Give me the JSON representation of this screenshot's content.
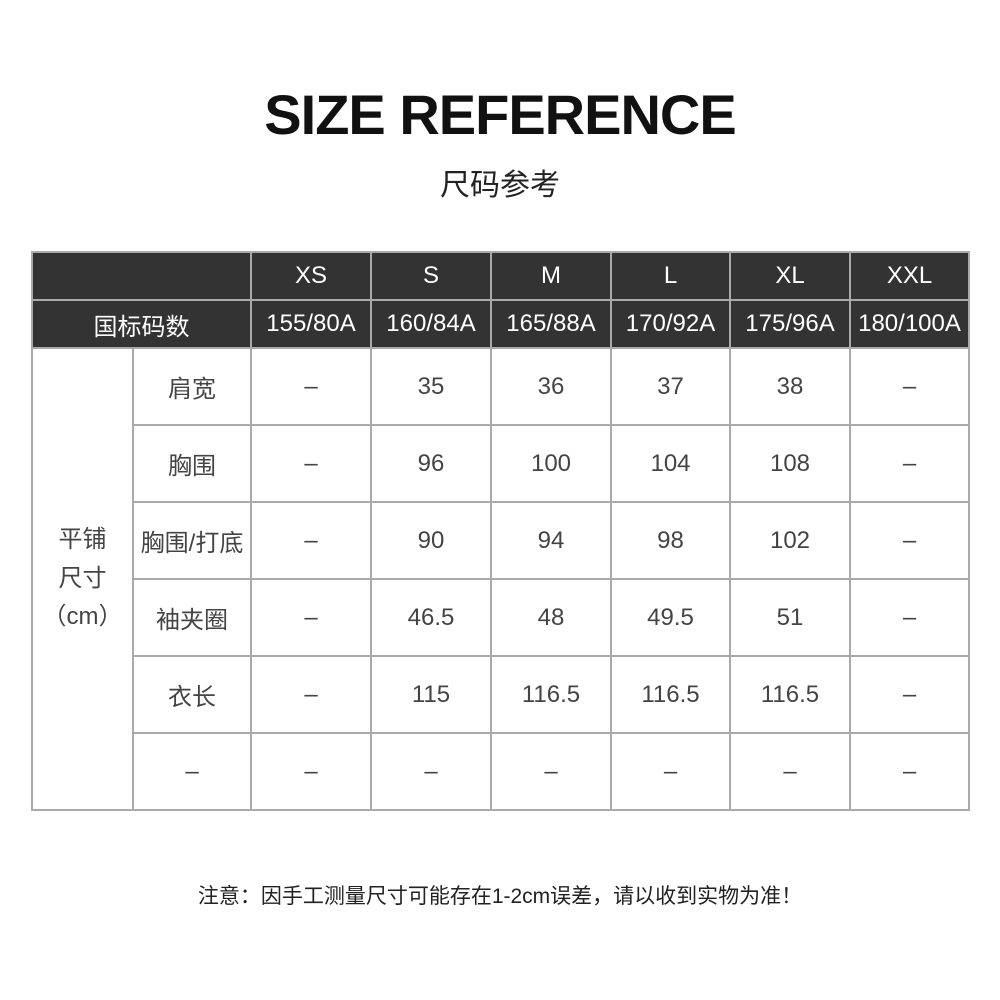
{
  "title": "SIZE REFERENCE",
  "subtitle": "尺码参考",
  "table": {
    "sizes": [
      "XS",
      "S",
      "M",
      "L",
      "XL",
      "XXL"
    ],
    "standard_label": "国标码数",
    "standard": [
      "155/80A",
      "160/84A",
      "165/88A",
      "170/92A",
      "175/96A",
      "180/100A"
    ],
    "group_label": [
      "平铺",
      "尺寸",
      "（cm）"
    ],
    "rows": [
      {
        "label": "肩宽",
        "values": [
          "–",
          "35",
          "36",
          "37",
          "38",
          "–"
        ]
      },
      {
        "label": "胸围",
        "values": [
          "–",
          "96",
          "100",
          "104",
          "108",
          "–"
        ]
      },
      {
        "label": "胸围/打底",
        "values": [
          "–",
          "90",
          "94",
          "98",
          "102",
          "–"
        ]
      },
      {
        "label": "袖夹圈",
        "values": [
          "–",
          "46.5",
          "48",
          "49.5",
          "51",
          "–"
        ]
      },
      {
        "label": "衣长",
        "values": [
          "–",
          "115",
          "116.5",
          "116.5",
          "116.5",
          "–"
        ]
      },
      {
        "label": "–",
        "values": [
          "–",
          "–",
          "–",
          "–",
          "–",
          "–"
        ]
      }
    ]
  },
  "note": "注意：因手工测量尺寸可能存在1-2cm误差，请以收到实物为准！",
  "colors": {
    "header_bg": "#333333",
    "border": "#aaaaaa"
  }
}
